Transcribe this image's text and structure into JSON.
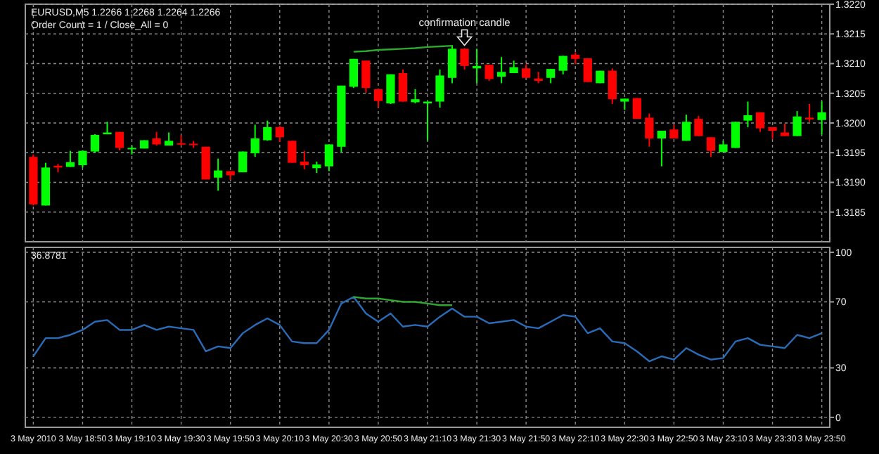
{
  "chart_data": [
    {
      "type": "candlestick",
      "ylim": [
        1.318,
        1.322
      ],
      "yticks": [
        {
          "value": 1.322,
          "label": "1.3220"
        },
        1.3215,
        {
          "value": 1.321,
          "label": "1.3210"
        },
        1.3205,
        {
          "value": 1.32,
          "label": "1.3200"
        },
        1.3195,
        {
          "value": 1.319,
          "label": "1.3190"
        },
        1.3185
      ],
      "tick_labels": "y",
      "grid": true,
      "categories": [
        null,
        null,
        null,
        null,
        null,
        null,
        null,
        null,
        null,
        null,
        null,
        null,
        null,
        null,
        null,
        null,
        null,
        null,
        null,
        null,
        null,
        null,
        null,
        null,
        null,
        null,
        null,
        null,
        null,
        null,
        null,
        null,
        null,
        null,
        null,
        null,
        null,
        null,
        null,
        null,
        null,
        null,
        null,
        null,
        null,
        null,
        null,
        null,
        null,
        null,
        null,
        null,
        null,
        null,
        null,
        null,
        null,
        null,
        null,
        null,
        null,
        null,
        null,
        null,
        null
      ],
      "ohlc": [
        [
          1.31943,
          1.31947,
          1.31861,
          1.31863
        ],
        [
          1.31861,
          1.31933,
          1.31861,
          1.31925
        ],
        [
          1.31928,
          1.31931,
          1.31917,
          1.31925
        ],
        [
          1.31926,
          1.31953,
          1.31926,
          1.31934
        ],
        [
          1.31929,
          1.31954,
          1.31925,
          1.31953
        ],
        [
          1.31952,
          1.31981,
          1.3195,
          1.3198
        ],
        [
          1.31981,
          1.32002,
          1.31981,
          1.31984
        ],
        [
          1.31985,
          1.31985,
          1.31954,
          1.31958
        ],
        [
          1.31956,
          1.31962,
          1.31947,
          1.31958
        ],
        [
          1.31957,
          1.31971,
          1.31957,
          1.31971
        ],
        [
          1.31974,
          1.31985,
          1.31962,
          1.31964
        ],
        [
          1.31962,
          1.31984,
          1.31962,
          1.3197
        ],
        [
          1.31966,
          1.31979,
          1.31962,
          1.31964
        ],
        [
          1.31965,
          1.3197,
          1.31958,
          1.31963
        ],
        [
          1.3196,
          1.3196,
          1.31905,
          1.31905
        ],
        [
          1.31908,
          1.3194,
          1.31886,
          1.3192
        ],
        [
          1.31919,
          1.31919,
          1.31904,
          1.31912
        ],
        [
          1.31917,
          1.31952,
          1.31917,
          1.31952
        ],
        [
          1.31949,
          1.31997,
          1.31943,
          1.31974
        ],
        [
          1.31971,
          1.32004,
          1.3197,
          1.31993
        ],
        [
          1.31993,
          1.31995,
          1.31968,
          1.31976
        ],
        [
          1.3197,
          1.3197,
          1.31933,
          1.31933
        ],
        [
          1.31935,
          1.31953,
          1.31922,
          1.31929
        ],
        [
          1.31924,
          1.31935,
          1.31916,
          1.3193
        ],
        [
          1.31927,
          1.31964,
          1.31919,
          1.31964
        ],
        [
          1.3196,
          1.32063,
          1.31951,
          1.32063
        ],
        [
          1.32061,
          1.32108,
          1.32059,
          1.32108
        ],
        [
          1.32105,
          1.32105,
          1.32051,
          1.32059
        ],
        [
          1.32057,
          1.32057,
          1.32026,
          1.32037
        ],
        [
          1.32033,
          1.32082,
          1.32032,
          1.32082
        ],
        [
          1.32084,
          1.3209,
          1.32036,
          1.32036
        ],
        [
          1.32035,
          1.32057,
          1.32033,
          1.3204
        ],
        [
          1.32033,
          1.32036,
          1.3197,
          1.32036
        ],
        [
          1.32036,
          1.3209,
          1.32026,
          1.3208
        ],
        [
          1.32076,
          1.32131,
          1.32067,
          1.32125
        ],
        [
          1.32125,
          1.32126,
          1.3209,
          1.32096
        ],
        [
          1.32092,
          1.32125,
          1.32067,
          1.32096
        ],
        [
          1.32098,
          1.32098,
          1.32071,
          1.32074
        ],
        [
          1.32078,
          1.32111,
          1.32067,
          1.32086
        ],
        [
          1.32084,
          1.32105,
          1.32084,
          1.32094
        ],
        [
          1.32092,
          1.32099,
          1.32076,
          1.32076
        ],
        [
          1.32075,
          1.32086,
          1.32067,
          1.32071
        ],
        [
          1.32076,
          1.32091,
          1.32067,
          1.32091
        ],
        [
          1.32088,
          1.32113,
          1.32082,
          1.32113
        ],
        [
          1.32115,
          1.32119,
          1.32099,
          1.32108
        ],
        [
          1.32109,
          1.32109,
          1.32069,
          1.32069
        ],
        [
          1.32067,
          1.32088,
          1.32067,
          1.32088
        ],
        [
          1.32088,
          1.32092,
          1.32032,
          1.3204
        ],
        [
          1.32036,
          1.32041,
          1.32022,
          1.32041
        ],
        [
          1.32042,
          1.32042,
          1.32007,
          1.32007
        ],
        [
          1.32009,
          1.32016,
          1.3196,
          1.31974
        ],
        [
          1.31974,
          1.31987,
          1.31927,
          1.31987
        ],
        [
          1.31989,
          1.31997,
          1.31974,
          1.31974
        ],
        [
          1.3197,
          1.32014,
          1.3197,
          1.32002
        ],
        [
          1.32007,
          1.32012,
          1.31978,
          1.31978
        ],
        [
          1.31976,
          1.31976,
          1.31943,
          1.31953
        ],
        [
          1.31951,
          1.3197,
          1.31951,
          1.31964
        ],
        [
          1.31958,
          1.32002,
          1.31958,
          1.32002
        ],
        [
          1.32004,
          1.32036,
          1.31993,
          1.32013
        ],
        [
          1.32018,
          1.32018,
          1.31985,
          1.31991
        ],
        [
          1.31993,
          1.31993,
          1.31973,
          1.31987
        ],
        [
          1.31984,
          1.31999,
          1.31978,
          1.31978
        ],
        [
          1.31978,
          1.3202,
          1.31978,
          1.32011
        ],
        [
          1.32009,
          1.32032,
          1.32002,
          1.32006
        ],
        [
          1.32005,
          1.32036,
          1.31981,
          1.32018
        ]
      ],
      "series": [
        {
          "type": "line",
          "color": "#2fa82f",
          "values": [
            null,
            null,
            null,
            null,
            null,
            null,
            null,
            null,
            null,
            null,
            null,
            null,
            null,
            null,
            null,
            null,
            null,
            null,
            null,
            null,
            null,
            null,
            null,
            null,
            null,
            null,
            1.3212,
            1.32121,
            1.32123,
            1.32124,
            1.32125,
            1.32126,
            1.32128,
            1.32129,
            1.3213,
            null,
            null,
            null,
            null,
            null,
            null,
            null,
            null,
            null,
            null,
            null,
            null,
            null,
            null,
            null,
            null,
            null,
            null,
            null,
            null,
            null,
            null,
            null,
            null,
            null,
            null,
            null,
            null,
            null,
            null
          ]
        }
      ],
      "annotations": [
        "EURUSD,M5  1.2266 1.2268 1.2264 1.2266",
        "Order Count = 1 / Close_All = 0",
        {
          "text": "confirmation candle",
          "y": 1.32126
        }
      ]
    },
    {
      "type": "line",
      "ylim": [
        -6,
        103
      ],
      "yticks": [
        0,
        30,
        70,
        100
      ],
      "grid": true,
      "categories": [
        "3 May 2010",
        null,
        null,
        null,
        "3 May 18:50",
        null,
        null,
        null,
        "3 May 19:10",
        null,
        null,
        null,
        "3 May 19:30",
        null,
        null,
        null,
        "3 May 19:50",
        null,
        null,
        null,
        "3 May 20:10",
        null,
        null,
        null,
        "3 May 20:30",
        null,
        null,
        null,
        "3 May 20:50",
        null,
        null,
        null,
        "3 May 21:10",
        null,
        null,
        null,
        "3 May 21:30",
        null,
        null,
        null,
        "3 May 21:50",
        null,
        null,
        null,
        "3 May 22:10",
        null,
        null,
        null,
        "3 May 22:30",
        null,
        null,
        null,
        "3 May 22:50",
        null,
        null,
        null,
        "3 May 23:10",
        null,
        null,
        null,
        "3 May 23:30",
        null,
        null,
        null,
        "3 May 23:50"
      ],
      "series": [
        {
          "color": "#2a6cb8",
          "values": [
            37,
            48,
            48,
            50,
            53,
            58,
            59,
            53,
            53,
            56,
            53,
            55,
            54,
            53,
            40,
            43,
            42,
            51,
            56,
            60,
            56,
            46,
            45,
            45,
            53,
            69,
            73,
            63,
            58,
            63,
            55,
            56,
            55,
            61,
            66,
            61,
            61,
            57,
            58,
            59,
            55,
            54,
            58,
            62,
            61,
            51,
            54,
            46,
            45,
            40,
            34,
            37,
            35,
            42,
            38,
            35,
            36,
            46,
            48,
            44,
            43,
            42,
            50,
            48,
            51
          ]
        },
        {
          "color": "#2fa82f",
          "values": [
            null,
            null,
            null,
            null,
            null,
            null,
            null,
            null,
            null,
            null,
            null,
            null,
            null,
            null,
            null,
            null,
            null,
            null,
            null,
            null,
            null,
            null,
            null,
            null,
            null,
            null,
            73,
            72,
            72,
            71,
            70,
            70,
            69,
            68,
            68,
            null,
            null,
            null,
            null,
            null,
            null,
            null,
            null,
            null,
            null,
            null,
            null,
            null,
            null,
            null,
            null,
            null,
            null,
            null,
            null,
            null,
            null,
            null,
            null,
            null,
            null,
            null,
            null,
            null,
            null
          ]
        }
      ],
      "annotations": [
        "36.8781"
      ]
    }
  ]
}
